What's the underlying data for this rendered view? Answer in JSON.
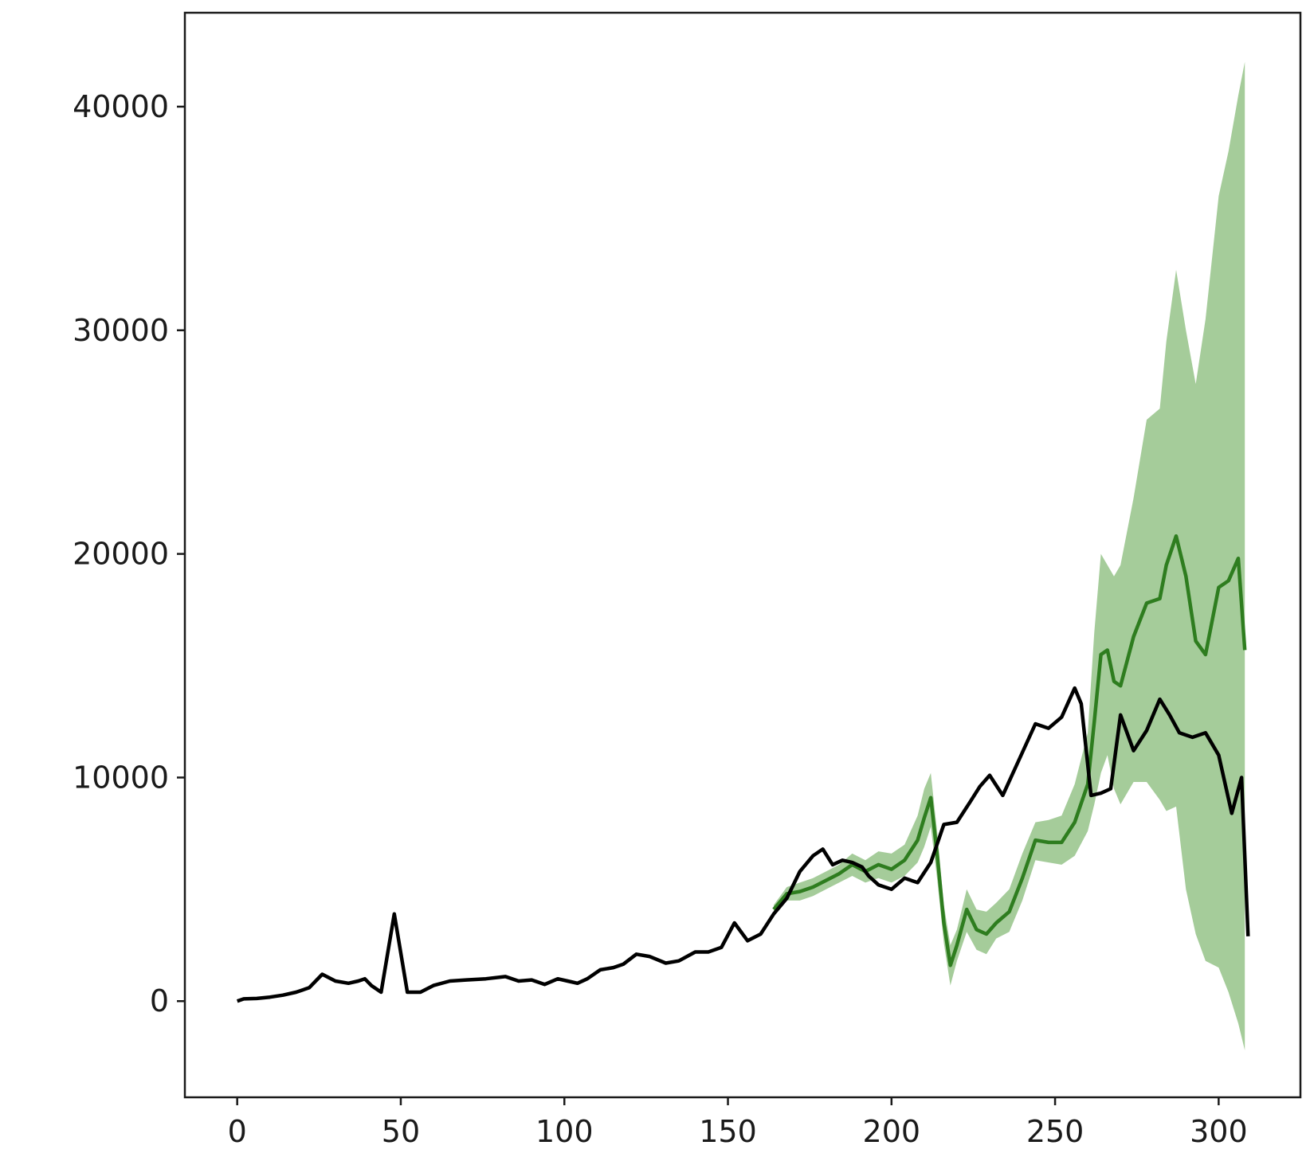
{
  "chart_data": {
    "type": "line",
    "title": "",
    "xlabel": "",
    "ylabel": "",
    "xlim": [
      -16,
      325
    ],
    "ylim": [
      -4300,
      44200
    ],
    "grid": false,
    "legend": "none",
    "x_ticks": [
      0,
      50,
      100,
      150,
      200,
      250,
      300
    ],
    "x_tick_labels": [
      "0",
      "50",
      "100",
      "150",
      "200",
      "250",
      "300"
    ],
    "y_ticks": [
      0,
      10000,
      20000,
      30000,
      40000
    ],
    "y_tick_labels": [
      "0",
      "10000",
      "20000",
      "30000",
      "40000"
    ],
    "colors": {
      "actual": "#000000",
      "forecast": "#2e7d1f",
      "band": "#a5cc9a"
    },
    "series": [
      {
        "role": "actual",
        "x": [
          0,
          2,
          6,
          10,
          14,
          18,
          22,
          26,
          30,
          34,
          37,
          39,
          41,
          44,
          48,
          52,
          56,
          60,
          65,
          70,
          76,
          82,
          86,
          90,
          94,
          98,
          101,
          104,
          107,
          111,
          115,
          118,
          122,
          126,
          131,
          135,
          140,
          144,
          148,
          152,
          156,
          160,
          164,
          168,
          172,
          176,
          179,
          182,
          185,
          188,
          191,
          193,
          196,
          200,
          204,
          208,
          212,
          216,
          220,
          224,
          227,
          230,
          234,
          239,
          244,
          248,
          252,
          256,
          258,
          261,
          264,
          267,
          270,
          274,
          278,
          282,
          285,
          288,
          292,
          296,
          300,
          304,
          307,
          309
        ],
        "y": [
          0,
          100,
          120,
          180,
          270,
          400,
          600,
          1200,
          900,
          800,
          900,
          1000,
          700,
          400,
          3900,
          400,
          400,
          700,
          900,
          950,
          1000,
          1100,
          900,
          950,
          750,
          1000,
          900,
          800,
          1000,
          1400,
          1500,
          1650,
          2100,
          2000,
          1700,
          1800,
          2200,
          2200,
          2400,
          3500,
          2700,
          3000,
          3900,
          4600,
          5800,
          6500,
          6800,
          6100,
          6300,
          6200,
          6000,
          5600,
          5200,
          5000,
          5500,
          5300,
          6200,
          7900,
          8000,
          8900,
          9600,
          10100,
          9200,
          10800,
          12400,
          12200,
          12700,
          14000,
          13300,
          9200,
          9300,
          9500,
          12800,
          11200,
          12100,
          13500,
          12800,
          12000,
          11800,
          12000,
          11000,
          8400,
          10000,
          2900
        ]
      },
      {
        "role": "forecast",
        "x": [
          164,
          168,
          172,
          176,
          180,
          184,
          188,
          192,
          196,
          200,
          204,
          208,
          210,
          212,
          214,
          216,
          218,
          220,
          223,
          226,
          229,
          232,
          236,
          240,
          244,
          248,
          252,
          256,
          260,
          262,
          264,
          266,
          268,
          270,
          274,
          278,
          282,
          284,
          287,
          290,
          293,
          296,
          300,
          303,
          306,
          308
        ],
        "y": [
          4100,
          4800,
          4900,
          5100,
          5400,
          5700,
          6100,
          5800,
          6100,
          5900,
          6300,
          7200,
          8200,
          9100,
          6500,
          3500,
          1600,
          2500,
          4100,
          3200,
          3000,
          3500,
          4000,
          5500,
          7200,
          7100,
          7100,
          8000,
          9700,
          12500,
          15500,
          15700,
          14300,
          14100,
          16300,
          17800,
          18000,
          19500,
          20800,
          19000,
          16100,
          15500,
          18500,
          18800,
          19800,
          15700
        ]
      },
      {
        "role": "band",
        "x": [
          164,
          168,
          172,
          176,
          180,
          184,
          188,
          192,
          196,
          200,
          204,
          208,
          210,
          212,
          214,
          216,
          218,
          220,
          223,
          226,
          229,
          232,
          236,
          240,
          244,
          248,
          252,
          256,
          260,
          262,
          264,
          266,
          268,
          270,
          274,
          278,
          282,
          284,
          287,
          290,
          293,
          296,
          300,
          303,
          306,
          308
        ],
        "upper": [
          4300,
          5100,
          5300,
          5500,
          5800,
          6100,
          6600,
          6300,
          6700,
          6600,
          7000,
          8300,
          9500,
          10200,
          7500,
          4300,
          2500,
          3200,
          5000,
          4100,
          4000,
          4400,
          5000,
          6600,
          8000,
          8100,
          8300,
          9700,
          12000,
          16500,
          20000,
          19500,
          19000,
          19500,
          22500,
          26000,
          26500,
          29500,
          32700,
          30000,
          27600,
          30500,
          36000,
          38000,
          40500,
          42000
        ],
        "lower": [
          3900,
          4500,
          4500,
          4700,
          5000,
          5300,
          5600,
          5300,
          5500,
          5300,
          5600,
          6200,
          6900,
          7800,
          5400,
          2600,
          700,
          1800,
          3100,
          2300,
          2100,
          2800,
          3100,
          4500,
          6300,
          6200,
          6100,
          6500,
          7600,
          8800,
          10200,
          11000,
          9500,
          8800,
          9800,
          9800,
          9000,
          8500,
          8700,
          5000,
          3000,
          1800,
          1500,
          400,
          -1000,
          -2200
        ]
      }
    ]
  }
}
